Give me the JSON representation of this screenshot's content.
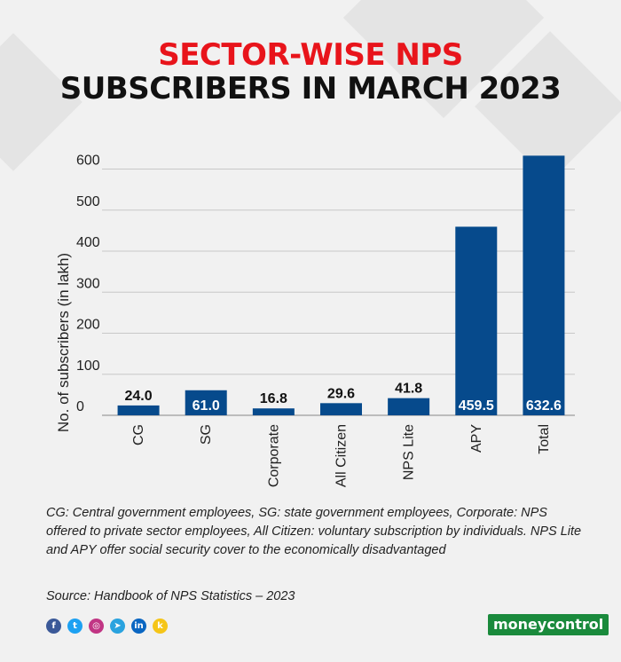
{
  "title_line1": "SECTOR-WISE NPS",
  "title_line2": "SUBSCRIBERS IN MARCH 2023",
  "chart_data": {
    "type": "bar",
    "categories": [
      "CG",
      "SG",
      "Corporate",
      "All Citizen",
      "NPS Lite",
      "APY",
      "Total"
    ],
    "values": [
      24.0,
      61.0,
      16.8,
      29.6,
      41.8,
      459.5,
      632.6
    ],
    "value_labels": [
      "24.0",
      "61.0",
      "16.8",
      "29.6",
      "41.8",
      "459.5",
      "632.6"
    ],
    "ylabel": "No. of subscribers (in lakh)",
    "xlabel": "",
    "ylim": [
      0,
      640
    ],
    "yticks": [
      0,
      100,
      200,
      300,
      400,
      500,
      600
    ],
    "grid": true,
    "bar_color": "#064a8c"
  },
  "footnote": "CG: Central government employees, SG: state government employees, Corporate: NPS offered to private sector employees, All Citizen: voluntary subscription by individuals. NPS Lite and APY offer social security cover to the economically disadvantaged",
  "source": "Source: Handbook of NPS Statistics – 2023",
  "social_icons": [
    {
      "name": "facebook-icon",
      "glyph": "f",
      "color": "#3b5998"
    },
    {
      "name": "twitter-icon",
      "glyph": "t",
      "color": "#1da1f2"
    },
    {
      "name": "instagram-icon",
      "glyph": "◎",
      "color": "#c13584"
    },
    {
      "name": "telegram-icon",
      "glyph": "➤",
      "color": "#2aa3df"
    },
    {
      "name": "linkedin-icon",
      "glyph": "in",
      "color": "#0a66c2"
    },
    {
      "name": "koo-icon",
      "glyph": "k",
      "color": "#f5c518"
    }
  ],
  "brand": "moneycontrol",
  "accent_color": "#e8141b"
}
